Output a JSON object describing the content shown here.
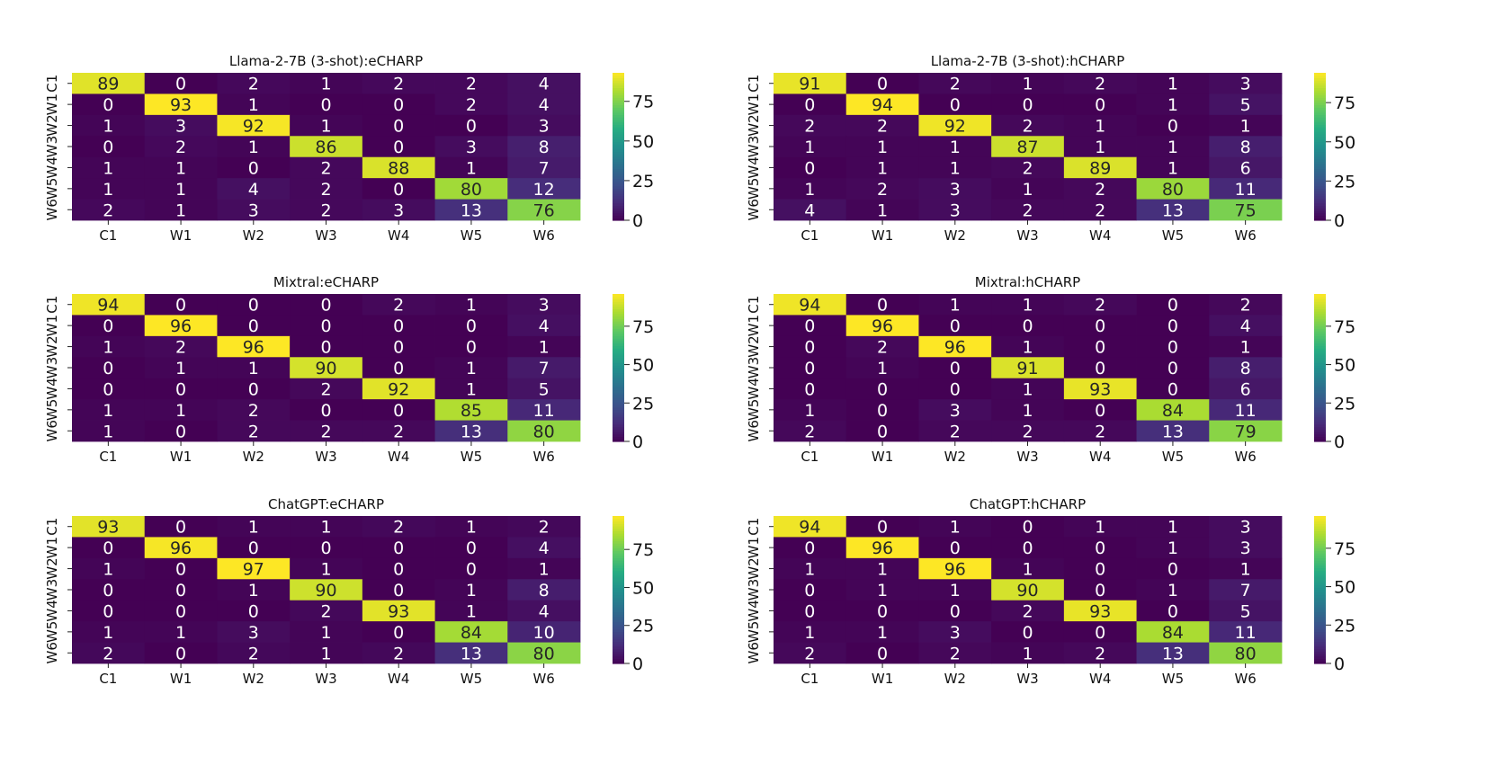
{
  "chart_data": [
    {
      "type": "heatmap",
      "title": "Llama-2-7B (3-shot):eCHARP",
      "x_labels": [
        "C1",
        "W1",
        "W2",
        "W3",
        "W4",
        "W5",
        "W6"
      ],
      "y_labels": [
        "C1",
        "W1",
        "W2",
        "W3",
        "W4",
        "W5",
        "W6"
      ],
      "values": [
        [
          89,
          0,
          2,
          1,
          2,
          2,
          4
        ],
        [
          0,
          93,
          1,
          0,
          0,
          2,
          4
        ],
        [
          1,
          3,
          92,
          1,
          0,
          0,
          3
        ],
        [
          0,
          2,
          1,
          86,
          0,
          3,
          8
        ],
        [
          1,
          1,
          0,
          2,
          88,
          1,
          7
        ],
        [
          1,
          1,
          4,
          2,
          0,
          80,
          12
        ],
        [
          2,
          1,
          3,
          2,
          3,
          13,
          76
        ]
      ],
      "colorbar_ticks": [
        0,
        25,
        50,
        75
      ],
      "colorbar_range": [
        0,
        93
      ],
      "colormap": "viridis"
    },
    {
      "type": "heatmap",
      "title": "Llama-2-7B (3-shot):hCHARP",
      "x_labels": [
        "C1",
        "W1",
        "W2",
        "W3",
        "W4",
        "W5",
        "W6"
      ],
      "y_labels": [
        "C1",
        "W1",
        "W2",
        "W3",
        "W4",
        "W5",
        "W6"
      ],
      "values": [
        [
          91,
          0,
          2,
          1,
          2,
          1,
          3
        ],
        [
          0,
          94,
          0,
          0,
          0,
          1,
          5
        ],
        [
          2,
          2,
          92,
          2,
          1,
          0,
          1
        ],
        [
          1,
          1,
          1,
          87,
          1,
          1,
          8
        ],
        [
          0,
          1,
          1,
          2,
          89,
          1,
          6
        ],
        [
          1,
          2,
          3,
          1,
          2,
          80,
          11
        ],
        [
          4,
          1,
          3,
          2,
          2,
          13,
          75
        ]
      ],
      "colorbar_ticks": [
        0,
        25,
        50,
        75
      ],
      "colorbar_range": [
        0,
        94
      ],
      "colormap": "viridis"
    },
    {
      "type": "heatmap",
      "title": "Mixtral:eCHARP",
      "x_labels": [
        "C1",
        "W1",
        "W2",
        "W3",
        "W4",
        "W5",
        "W6"
      ],
      "y_labels": [
        "C1",
        "W1",
        "W2",
        "W3",
        "W4",
        "W5",
        "W6"
      ],
      "values": [
        [
          94,
          0,
          0,
          0,
          2,
          1,
          3
        ],
        [
          0,
          96,
          0,
          0,
          0,
          0,
          4
        ],
        [
          1,
          2,
          96,
          0,
          0,
          0,
          1
        ],
        [
          0,
          1,
          1,
          90,
          0,
          1,
          7
        ],
        [
          0,
          0,
          0,
          2,
          92,
          1,
          5
        ],
        [
          1,
          1,
          2,
          0,
          0,
          85,
          11
        ],
        [
          1,
          0,
          2,
          2,
          2,
          13,
          80
        ]
      ],
      "colorbar_ticks": [
        0,
        25,
        50,
        75
      ],
      "colorbar_range": [
        0,
        96
      ],
      "colormap": "viridis"
    },
    {
      "type": "heatmap",
      "title": "Mixtral:hCHARP",
      "x_labels": [
        "C1",
        "W1",
        "W2",
        "W3",
        "W4",
        "W5",
        "W6"
      ],
      "y_labels": [
        "C1",
        "W1",
        "W2",
        "W3",
        "W4",
        "W5",
        "W6"
      ],
      "values": [
        [
          94,
          0,
          1,
          1,
          2,
          0,
          2
        ],
        [
          0,
          96,
          0,
          0,
          0,
          0,
          4
        ],
        [
          0,
          2,
          96,
          1,
          0,
          0,
          1
        ],
        [
          0,
          1,
          0,
          91,
          0,
          0,
          8
        ],
        [
          0,
          0,
          0,
          1,
          93,
          0,
          6
        ],
        [
          1,
          0,
          3,
          1,
          0,
          84,
          11
        ],
        [
          2,
          0,
          2,
          2,
          2,
          13,
          79
        ]
      ],
      "colorbar_ticks": [
        0,
        25,
        50,
        75
      ],
      "colorbar_range": [
        0,
        96
      ],
      "colormap": "viridis"
    },
    {
      "type": "heatmap",
      "title": "ChatGPT:eCHARP",
      "x_labels": [
        "C1",
        "W1",
        "W2",
        "W3",
        "W4",
        "W5",
        "W6"
      ],
      "y_labels": [
        "C1",
        "W1",
        "W2",
        "W3",
        "W4",
        "W5",
        "W6"
      ],
      "values": [
        [
          93,
          0,
          1,
          1,
          2,
          1,
          2
        ],
        [
          0,
          96,
          0,
          0,
          0,
          0,
          4
        ],
        [
          1,
          0,
          97,
          1,
          0,
          0,
          1
        ],
        [
          0,
          0,
          1,
          90,
          0,
          1,
          8
        ],
        [
          0,
          0,
          0,
          2,
          93,
          1,
          4
        ],
        [
          1,
          1,
          3,
          1,
          0,
          84,
          10
        ],
        [
          2,
          0,
          2,
          1,
          2,
          13,
          80
        ]
      ],
      "colorbar_ticks": [
        0,
        25,
        50,
        75
      ],
      "colorbar_range": [
        0,
        97
      ],
      "colormap": "viridis"
    },
    {
      "type": "heatmap",
      "title": "ChatGPT:hCHARP",
      "x_labels": [
        "C1",
        "W1",
        "W2",
        "W3",
        "W4",
        "W5",
        "W6"
      ],
      "y_labels": [
        "C1",
        "W1",
        "W2",
        "W3",
        "W4",
        "W5",
        "W6"
      ],
      "values": [
        [
          94,
          0,
          1,
          0,
          1,
          1,
          3
        ],
        [
          0,
          96,
          0,
          0,
          0,
          1,
          3
        ],
        [
          1,
          1,
          96,
          1,
          0,
          0,
          1
        ],
        [
          0,
          1,
          1,
          90,
          0,
          1,
          7
        ],
        [
          0,
          0,
          0,
          2,
          93,
          0,
          5
        ],
        [
          1,
          1,
          3,
          0,
          0,
          84,
          11
        ],
        [
          2,
          0,
          2,
          1,
          2,
          13,
          80
        ]
      ],
      "colorbar_ticks": [
        0,
        25,
        50,
        75
      ],
      "colorbar_range": [
        0,
        96
      ],
      "colormap": "viridis"
    }
  ]
}
